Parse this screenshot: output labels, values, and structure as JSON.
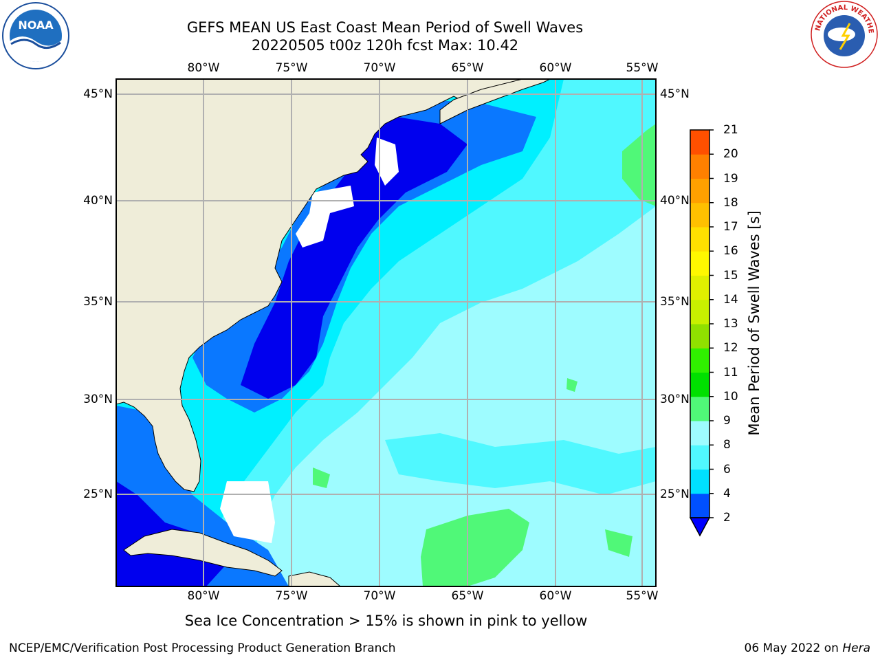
{
  "title": {
    "line1": "GEFS MEAN US East Coast Mean Period of Swell Waves",
    "line2": "20220505 t00z 120h fcst   Max: 10.42"
  },
  "map": {
    "lon_labels": [
      "80°W",
      "75°W",
      "70°W",
      "65°W",
      "60°W",
      "55°W"
    ],
    "lat_labels": [
      "45°N",
      "40°N",
      "35°N",
      "30°N",
      "25°N"
    ],
    "colors": {
      "land": "#efedd9",
      "gridline": "#b0b0b0",
      "coast": "#000000"
    }
  },
  "colorbar": {
    "title": "Mean Period of Swell Waves [s]",
    "labels": [
      "2",
      "4",
      "6",
      "8",
      "9",
      "10",
      "11",
      "12",
      "13",
      "14",
      "15",
      "16",
      "17",
      "18",
      "19",
      "20",
      "21"
    ],
    "colors": [
      "#0050ff",
      "#00e0ff",
      "#50f8ff",
      "#9efcff",
      "#50f878",
      "#00e000",
      "#30f000",
      "#90e000",
      "#c8f000",
      "#e0f000",
      "#fff800",
      "#ffe000",
      "#ffc000",
      "#ffa000",
      "#ff8000",
      "#ff5000",
      "#ff1000"
    ],
    "extend_color": "#0000ff"
  },
  "ice_note": "Sea Ice Concentration > 15% is shown in pink to yellow",
  "footer": {
    "left": "NCEP/EMC/Verification Post Processing Product Generation Branch",
    "right_date": "06 May 2022 on ",
    "right_host": "Hera"
  },
  "logos": {
    "noaa": "NOAA",
    "nws": "NATIONAL WEATHER SERVICE"
  }
}
